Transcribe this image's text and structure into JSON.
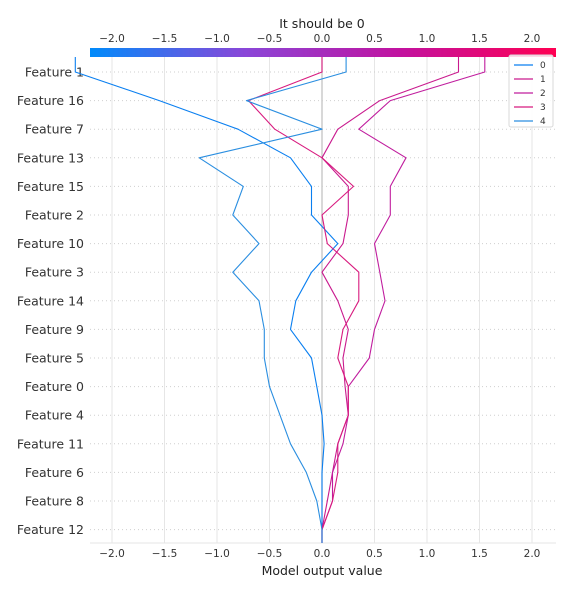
{
  "chart_data": {
    "type": "line",
    "title": "It should be 0",
    "xlabel": "Model output value",
    "ylabel": "",
    "xlim": [
      -2.2,
      2.2
    ],
    "x_ticks": [
      "−2.0",
      "−1.5",
      "−1.0",
      "−0.5",
      "0.0",
      "0.5",
      "1.0",
      "1.5",
      "2.0"
    ],
    "x_tick_values": [
      -2.0,
      -1.5,
      -1.0,
      -0.5,
      0.0,
      0.5,
      1.0,
      1.5,
      2.0
    ],
    "colorbar_colors": [
      "#008bfb",
      "#8a46d8",
      "#c2129f",
      "#ff0052"
    ],
    "features": [
      "Feature 1",
      "Feature 16",
      "Feature 7",
      "Feature 13",
      "Feature 15",
      "Feature 2",
      "Feature 10",
      "Feature 3",
      "Feature 14",
      "Feature 9",
      "Feature 5",
      "Feature 0",
      "Feature 4",
      "Feature 11",
      "Feature 6",
      "Feature 8",
      "Feature 12"
    ],
    "legend_position": "top-right",
    "series": [
      {
        "name": "0",
        "color": "#0a7ff0",
        "values": [
          -2.35,
          -1.55,
          -0.8,
          -0.3,
          -0.1,
          -0.1,
          0.15,
          -0.1,
          -0.25,
          -0.3,
          -0.1,
          -0.05,
          0.0,
          0.02,
          0.0,
          0.0,
          0.0
        ]
      },
      {
        "name": "1",
        "color": "#c91a8e",
        "values": [
          1.3,
          0.55,
          0.15,
          0.0,
          0.25,
          0.25,
          0.2,
          0.0,
          0.15,
          0.25,
          0.2,
          0.22,
          0.25,
          0.15,
          0.1,
          0.05,
          0.0
        ]
      },
      {
        "name": "2",
        "color": "#c01d9e",
        "values": [
          1.55,
          0.65,
          0.35,
          0.8,
          0.65,
          0.65,
          0.5,
          0.55,
          0.6,
          0.5,
          0.45,
          0.25,
          0.25,
          0.2,
          0.1,
          0.1,
          0.0
        ]
      },
      {
        "name": "3",
        "color": "#d81b7f",
        "values": [
          0.0,
          -0.7,
          -0.45,
          0.0,
          0.3,
          0.0,
          0.05,
          0.35,
          0.35,
          0.2,
          0.15,
          0.25,
          0.25,
          0.15,
          0.15,
          0.1,
          0.0
        ]
      },
      {
        "name": "4",
        "color": "#2a8ee0",
        "values": [
          0.23,
          -0.72,
          0.0,
          -1.17,
          -0.75,
          -0.85,
          -0.6,
          -0.85,
          -0.6,
          -0.55,
          -0.55,
          -0.5,
          -0.4,
          -0.3,
          -0.15,
          -0.05,
          0.0
        ]
      }
    ]
  }
}
